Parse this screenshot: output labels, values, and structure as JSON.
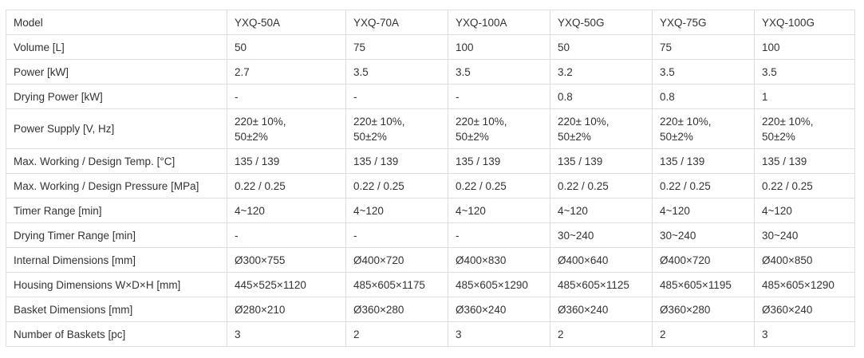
{
  "table": {
    "header": [
      "Model",
      "YXQ-50A",
      "YXQ-70A",
      "YXQ-100A",
      "YXQ-50G",
      "YXQ-75G",
      "YXQ-100G"
    ],
    "rows": [
      [
        "Volume [L]",
        "50",
        "75",
        "100",
        "50",
        "75",
        "100"
      ],
      [
        "Power [kW]",
        "2.7",
        "3.5",
        "3.5",
        "3.2",
        "3.5",
        "3.5"
      ],
      [
        "Drying Power [kW]",
        "-",
        "-",
        "-",
        "0.8",
        "0.8",
        "1"
      ],
      [
        "Power Supply [V, Hz]",
        [
          "220± 10%,",
          "50±2%"
        ],
        [
          "220± 10%,",
          "50±2%"
        ],
        [
          "220± 10%,",
          "50±2%"
        ],
        [
          "220± 10%,",
          "50±2%"
        ],
        [
          "220± 10%,",
          "50±2%"
        ],
        [
          "220± 10%,",
          "50±2%"
        ]
      ],
      [
        "Max. Working / Design Temp. [°C]",
        "135 / 139",
        "135 / 139",
        "135 / 139",
        "135 / 139",
        "135 / 139",
        "135 / 139"
      ],
      [
        "Max. Working / Design Pressure [MPa]",
        "0.22 / 0.25",
        "0.22 / 0.25",
        "0.22 / 0.25",
        "0.22 / 0.25",
        "0.22 / 0.25",
        "0.22 / 0.25"
      ],
      [
        "Timer Range [min]",
        "4~120",
        "4~120",
        "4~120",
        "4~120",
        "4~120",
        "4~120"
      ],
      [
        "Drying Timer Range [min]",
        "-",
        "-",
        "-",
        "30~240",
        "30~240",
        "30~240"
      ],
      [
        "Internal Dimensions [mm]",
        "Ø300×755",
        "Ø400×720",
        "Ø400×830",
        "Ø400×640",
        "Ø400×720",
        "Ø400×850"
      ],
      [
        "Housing Dimensions W×D×H [mm]",
        "445×525×1120",
        "485×605×1175",
        "485×605×1290",
        "485×605×1125",
        "485×605×1195",
        "485×605×1290"
      ],
      [
        "Basket Dimensions [mm]",
        "Ø280×210",
        "Ø360×280",
        "Ø360×240",
        "Ø360×240",
        "Ø360×280",
        "Ø360×240"
      ],
      [
        "Number of Baskets [pc]",
        "3",
        "2",
        "3",
        "2",
        "2",
        "3"
      ]
    ]
  }
}
